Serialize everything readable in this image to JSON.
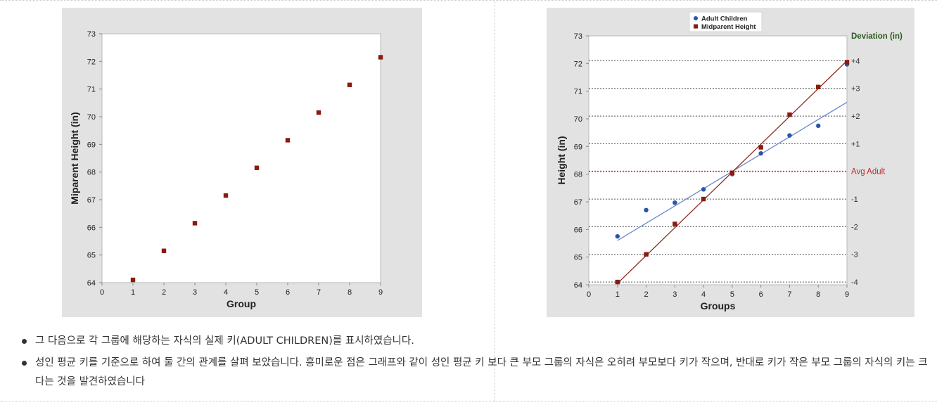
{
  "chart_data": [
    {
      "type": "scatter",
      "title": "",
      "xlabel": "Group",
      "ylabel": "Miparent Height (in)",
      "xlim": [
        0,
        9
      ],
      "ylim": [
        64,
        73
      ],
      "xticks": [
        0,
        1,
        2,
        3,
        4,
        5,
        6,
        7,
        8,
        9
      ],
      "yticks": [
        64,
        65,
        66,
        67,
        68,
        69,
        70,
        71,
        72,
        73
      ],
      "grid": false,
      "series": [
        {
          "marker": "square",
          "color": "#8b1a10",
          "x": [
            1,
            2,
            3,
            4,
            5,
            6,
            7,
            8,
            9
          ],
          "y": [
            64.1,
            65.15,
            66.15,
            67.15,
            68.15,
            69.15,
            70.15,
            71.15,
            72.15
          ]
        }
      ]
    },
    {
      "type": "scatter",
      "title": "",
      "xlabel": "Groups",
      "ylabel": "Height (in)",
      "xlim": [
        0,
        9
      ],
      "ylim": [
        64,
        73
      ],
      "xticks": [
        0,
        1,
        2,
        3,
        4,
        5,
        6,
        7,
        8,
        9
      ],
      "yticks": [
        64,
        65,
        66,
        67,
        68,
        69,
        70,
        71,
        72,
        73
      ],
      "legend_position": "top-center",
      "series": [
        {
          "name": "Adult Children",
          "marker": "circle",
          "color": "#2855a8",
          "x": [
            1,
            2,
            3,
            4,
            5,
            6,
            7,
            8,
            9
          ],
          "y": [
            65.75,
            66.7,
            66.97,
            67.45,
            68.0,
            68.75,
            69.4,
            69.75,
            71.97
          ],
          "fit_line": {
            "x": [
              1,
              9
            ],
            "y": [
              65.6,
              70.6
            ],
            "color": "#6b86cc"
          }
        },
        {
          "name": "Midparent Height",
          "marker": "square",
          "color": "#8b1a10",
          "x": [
            1,
            2,
            3,
            4,
            5,
            6,
            7,
            8,
            9
          ],
          "y": [
            64.1,
            65.1,
            66.2,
            67.1,
            68.05,
            68.97,
            70.15,
            71.15,
            72.05
          ],
          "fit_line": {
            "x": [
              1,
              9
            ],
            "y": [
              64.05,
              72.1
            ],
            "color": "#8b2a20"
          }
        }
      ],
      "secondary_axis": {
        "title": "Deviation (in)",
        "title_color": "#2d5a1f",
        "reference": {
          "value": 68.1,
          "label": "Avg Adult",
          "color": "#c0282d"
        },
        "lines": [
          {
            "value": 64.1,
            "label": "-4"
          },
          {
            "value": 65.1,
            "label": "-3"
          },
          {
            "value": 66.1,
            "label": "-2"
          },
          {
            "value": 67.1,
            "label": "-1"
          },
          {
            "value": 69.1,
            "label": "+1"
          },
          {
            "value": 70.1,
            "label": "+2"
          },
          {
            "value": 71.1,
            "label": "+3"
          },
          {
            "value": 72.1,
            "label": "+4"
          }
        ]
      }
    }
  ],
  "bullets": [
    "그 다음으로 각 그룹에 해당하는 자식의 실제 키(ADULT CHILDREN)를 표시하였습니다.",
    "성인 평균 키를 기준으로 하여 둘 간의 관계를 살펴 보았습니다. 흥미로운 점은 그래프와 같이 성인 평균 키 보다 큰 부모 그룹의 자식은 오히려 부모보다 키가 작으며, 반대로 키가 작은 부모 그룹의 자식의 키는 크다는 것을 발견하였습니다"
  ]
}
